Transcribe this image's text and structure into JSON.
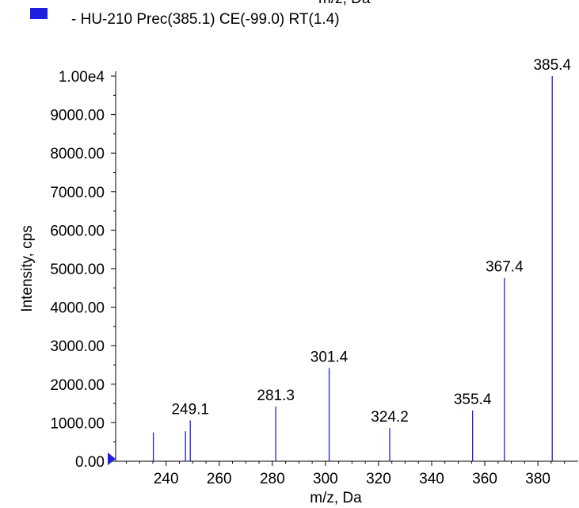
{
  "legend": {
    "label": "- HU-210 Prec(385.1) CE(-99.0) RT(1.4)",
    "color": "#1f1fe0"
  },
  "top_cut_text": "m/z, Da",
  "chart_data": {
    "type": "bar",
    "title": "",
    "xlabel": "m/z, Da",
    "ylabel": "Intensity, cps",
    "xlim": [
      221,
      391
    ],
    "ylim": [
      0,
      10000
    ],
    "x_ticks": [
      240,
      260,
      280,
      300,
      320,
      340,
      360,
      380
    ],
    "y_ticks": [
      0,
      1000,
      2000,
      3000,
      4000,
      5000,
      6000,
      7000,
      8000,
      9000,
      10000
    ],
    "y_tick_labels": [
      "0.00",
      "1000.00",
      "2000.00",
      "3000.00",
      "4000.00",
      "5000.00",
      "6000.00",
      "7000.00",
      "8000.00",
      "9000.00",
      "1.00e4"
    ],
    "series": [
      {
        "color": "#1f1fe0",
        "peaks": [
          {
            "x": 235.2,
            "y": 750
          },
          {
            "x": 247.3,
            "y": 780
          },
          {
            "x": 249.1,
            "y": 1060,
            "label": "249.1"
          },
          {
            "x": 281.3,
            "y": 1420,
            "label": "281.3"
          },
          {
            "x": 301.4,
            "y": 2420,
            "label": "301.4"
          },
          {
            "x": 324.2,
            "y": 860,
            "label": "324.2"
          },
          {
            "x": 355.4,
            "y": 1320,
            "label": "355.4"
          },
          {
            "x": 367.4,
            "y": 4760,
            "label": "367.4"
          },
          {
            "x": 385.4,
            "y": 10000,
            "label": "385.4"
          }
        ]
      }
    ],
    "grid": false,
    "legend_position": "top-left"
  }
}
